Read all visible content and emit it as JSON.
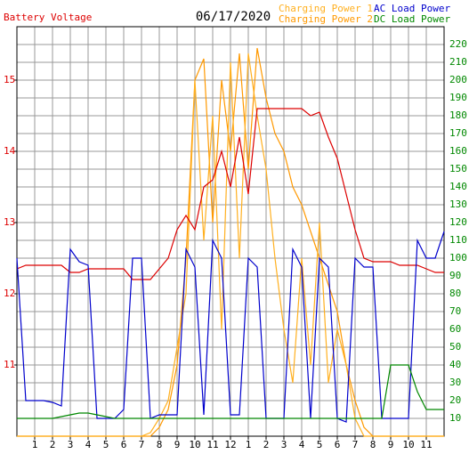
{
  "chart_data": {
    "type": "line",
    "title": "06/17/2020",
    "ylabel": "Battery Voltage",
    "x": [
      0,
      0.5,
      1,
      1.5,
      2,
      2.5,
      3,
      3.5,
      4,
      4.5,
      5,
      5.5,
      6,
      6.5,
      7,
      7.5,
      8,
      8.5,
      9,
      9.5,
      10,
      10.5,
      11,
      11.5,
      12,
      12.5,
      13,
      13.5,
      14,
      14.5,
      15,
      15.5,
      16,
      16.5,
      17,
      17.5,
      18,
      18.5,
      19,
      19.5,
      20,
      20.5,
      21,
      21.5,
      22,
      22.5,
      23,
      23.5,
      24
    ],
    "xlim": [
      0,
      24
    ],
    "xticks": [
      1,
      2,
      3,
      4,
      5,
      6,
      7,
      8,
      9,
      10,
      11,
      12,
      {
        "value": 13,
        "label": "1"
      },
      {
        "value": 14,
        "label": "2"
      },
      {
        "value": 15,
        "label": "3"
      },
      {
        "value": 16,
        "label": "4"
      },
      {
        "value": 17,
        "label": "5"
      },
      {
        "value": 18,
        "label": "6"
      },
      {
        "value": 19,
        "label": "7"
      },
      {
        "value": 20,
        "label": "8"
      },
      {
        "value": 21,
        "label": "9"
      },
      {
        "value": 22,
        "label": "10"
      },
      {
        "value": 23,
        "label": "11"
      }
    ],
    "ylim": [
      10,
      15.75
    ],
    "yticks": [
      11,
      12,
      13,
      14,
      15
    ],
    "y2lim": [
      0,
      230
    ],
    "y2ticks": [
      10,
      20,
      30,
      40,
      50,
      60,
      70,
      80,
      90,
      100,
      110,
      120,
      130,
      140,
      150,
      160,
      170,
      180,
      190,
      200,
      210,
      220
    ],
    "grid": true,
    "series": [
      {
        "name": "Battery Voltage",
        "color": "#dd0000",
        "values": [
          12.35,
          12.4,
          12.4,
          12.4,
          12.4,
          12.4,
          12.3,
          12.3,
          12.35,
          12.35,
          12.35,
          12.35,
          12.35,
          12.2,
          12.2,
          12.2,
          12.35,
          12.5,
          12.9,
          13.1,
          12.9,
          13.5,
          13.6,
          14.0,
          13.5,
          14.2,
          13.4,
          14.6,
          14.6,
          14.6,
          14.6,
          14.6,
          14.6,
          14.5,
          14.55,
          14.2,
          13.9,
          13.4,
          12.9,
          12.5,
          12.45,
          12.45,
          12.45,
          12.4,
          12.4,
          12.4,
          12.35,
          12.3,
          12.3
        ]
      },
      {
        "name": "Charging Power 1",
        "color": "#ffb020",
        "axis": "y2",
        "values": [
          0,
          0,
          0,
          0,
          0,
          0,
          0,
          0,
          0,
          0,
          0,
          0,
          0,
          0,
          0,
          2,
          10,
          20,
          50,
          80,
          200,
          110,
          180,
          60,
          210,
          100,
          215,
          180,
          150,
          100,
          60,
          30,
          100,
          40,
          120,
          30,
          60,
          40,
          10,
          0,
          0,
          0,
          0,
          0,
          0,
          0,
          0,
          0,
          0
        ]
      },
      {
        "name": "Charging Power 2",
        "color": "#ff9900",
        "axis": "y2",
        "values": [
          0,
          0,
          0,
          0,
          0,
          0,
          0,
          0,
          0,
          0,
          0,
          0,
          0,
          0,
          0,
          0,
          5,
          15,
          40,
          100,
          200,
          212,
          120,
          200,
          160,
          215,
          150,
          218,
          190,
          170,
          160,
          140,
          130,
          115,
          100,
          85,
          70,
          40,
          20,
          5,
          0,
          0,
          0,
          0,
          0,
          0,
          0,
          0,
          0
        ]
      },
      {
        "name": "AC Load Power",
        "color": "#0000cc",
        "axis": "y2",
        "values": [
          100,
          20,
          20,
          20,
          19,
          17,
          105,
          98,
          96,
          10,
          10,
          10,
          15,
          100,
          100,
          10,
          12,
          12,
          12,
          105,
          95,
          12,
          110,
          100,
          12,
          12,
          100,
          95,
          10,
          10,
          10,
          105,
          95,
          10,
          100,
          95,
          10,
          8,
          100,
          95,
          95,
          10,
          10,
          10,
          10,
          110,
          100,
          100,
          115
        ]
      },
      {
        "name": "DC Load Power",
        "color": "#008800",
        "axis": "y2",
        "values": [
          10,
          10,
          10,
          10,
          10,
          11,
          12,
          13,
          13,
          12,
          11,
          10,
          10,
          10,
          10,
          10,
          10,
          10,
          10,
          10,
          10,
          10,
          10,
          10,
          10,
          10,
          10,
          10,
          10,
          10,
          10,
          10,
          10,
          10,
          10,
          10,
          10,
          10,
          10,
          10,
          10,
          10,
          40,
          40,
          40,
          25,
          15,
          15,
          15
        ]
      }
    ]
  }
}
